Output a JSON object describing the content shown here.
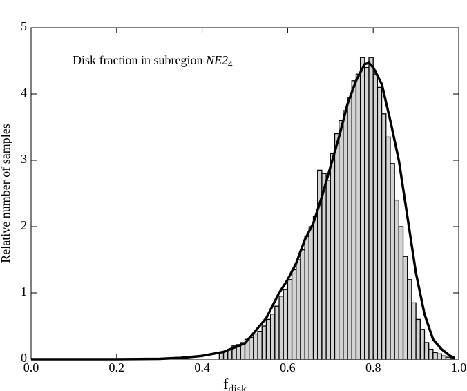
{
  "chart_data": {
    "type": "histogram",
    "annotation": "Disk fraction in subregion",
    "annotation_region": "NE2",
    "annotation_sub": "4",
    "xlabel": "f",
    "xlabel_sub": "disk",
    "ylabel": "Relative number of samples",
    "color": "#d3d3d3",
    "edgecolor": "#000000",
    "bins": [
      0.44,
      0.45,
      0.46,
      0.47,
      0.48,
      0.49,
      0.5,
      0.51,
      0.52,
      0.53,
      0.54,
      0.55,
      0.56,
      0.57,
      0.58,
      0.59,
      0.6,
      0.61,
      0.62,
      0.63,
      0.64,
      0.65,
      0.66,
      0.67,
      0.68,
      0.69,
      0.7,
      0.71,
      0.72,
      0.73,
      0.74,
      0.75,
      0.76,
      0.77,
      0.78,
      0.79,
      0.8,
      0.81,
      0.82,
      0.83,
      0.84,
      0.85,
      0.86,
      0.87,
      0.88,
      0.89,
      0.9,
      0.91,
      0.92,
      0.93,
      0.94,
      0.95,
      0.96,
      0.97,
      0.98,
      0.99
    ],
    "values": [
      0.1,
      0.12,
      0.15,
      0.2,
      0.22,
      0.25,
      0.3,
      0.33,
      0.38,
      0.42,
      0.5,
      0.6,
      0.68,
      0.8,
      0.95,
      1.05,
      1.2,
      1.35,
      1.5,
      1.65,
      1.85,
      2.0,
      2.15,
      2.85,
      2.8,
      2.7,
      3.1,
      3.4,
      3.6,
      3.75,
      3.95,
      4.2,
      4.3,
      4.55,
      4.4,
      4.55,
      4.3,
      4.1,
      3.7,
      3.35,
      2.95,
      2.4,
      2.0,
      1.55,
      1.2,
      0.85,
      0.6,
      0.45,
      0.25,
      0.15,
      0.1,
      0.08,
      0.05,
      0.03,
      0.02
    ],
    "fit": {
      "type": "line",
      "color": "#000000",
      "x": [
        0.0,
        0.1,
        0.2,
        0.3,
        0.35,
        0.4,
        0.45,
        0.5,
        0.55,
        0.58,
        0.6,
        0.62,
        0.64,
        0.66,
        0.68,
        0.7,
        0.72,
        0.74,
        0.76,
        0.78,
        0.79,
        0.8,
        0.82,
        0.84,
        0.86,
        0.88,
        0.9,
        0.92,
        0.94,
        0.96,
        0.98,
        0.99
      ],
      "values": [
        0,
        0,
        0,
        0.005,
        0.02,
        0.05,
        0.11,
        0.24,
        0.62,
        1.0,
        1.2,
        1.45,
        1.8,
        2.05,
        2.45,
        2.9,
        3.35,
        3.85,
        4.2,
        4.45,
        4.47,
        4.4,
        4.15,
        3.6,
        3.0,
        2.15,
        1.3,
        0.68,
        0.3,
        0.15,
        0.05,
        0.02
      ]
    },
    "xlim": [
      0,
      1
    ],
    "ylim": [
      0,
      5
    ],
    "xticks": [
      {
        "value": 0,
        "label": "0.0"
      },
      0.2,
      0.4,
      0.6,
      0.8,
      {
        "value": 1,
        "label": "1.0"
      }
    ],
    "yticks": [
      0,
      1,
      2,
      3,
      4,
      5
    ]
  }
}
